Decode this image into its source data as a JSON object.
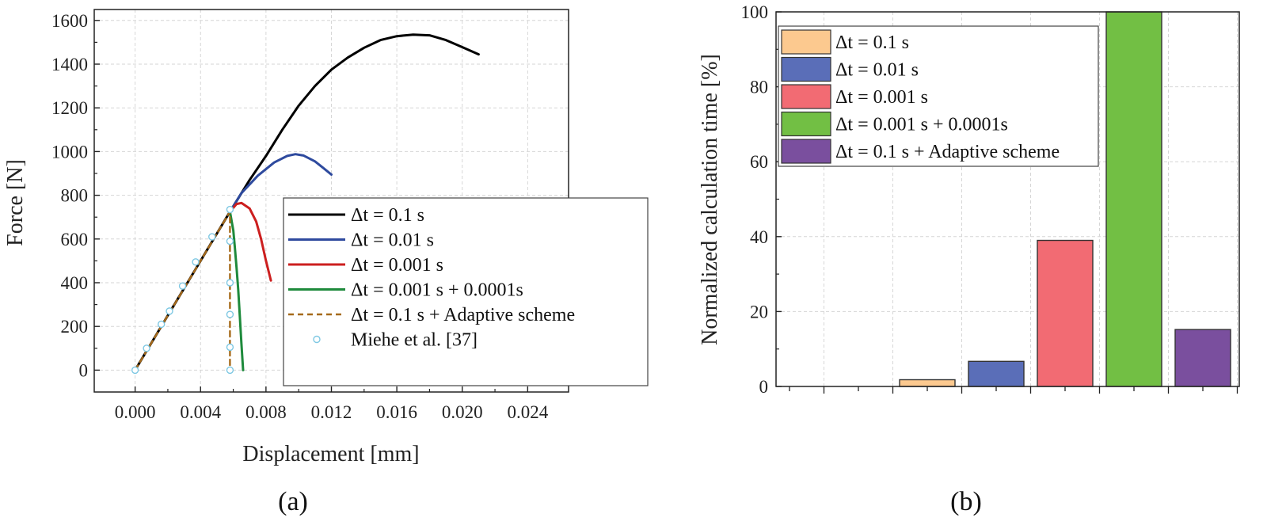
{
  "panels": [
    "(a)",
    "(b)"
  ],
  "chart_data": [
    {
      "type": "line",
      "panel": "a",
      "xlabel": "Displacement [mm]",
      "ylabel": "Force [N]",
      "xlim": [
        -0.0025,
        0.0265
      ],
      "ylim": [
        -100,
        1650
      ],
      "xticks": [
        "0.000",
        "0.004",
        "0.008",
        "0.012",
        "0.016",
        "0.020",
        "0.024"
      ],
      "yticks": [
        "0",
        "200",
        "400",
        "600",
        "800",
        "1000",
        "1200",
        "1400",
        "1600"
      ],
      "grid": true,
      "legend_position": "center-right",
      "series": [
        {
          "name": "Δt = 0.1 s",
          "color": "#000000",
          "style": "solid",
          "x": [
            0,
            0.001,
            0.002,
            0.003,
            0.004,
            0.005,
            0.0058,
            0.007,
            0.008,
            0.009,
            0.01,
            0.011,
            0.012,
            0.013,
            0.014,
            0.015,
            0.016,
            0.017,
            0.018,
            0.019,
            0.02,
            0.021
          ],
          "y": [
            0,
            125,
            250,
            375,
            500,
            625,
            725,
            870,
            980,
            1100,
            1210,
            1300,
            1375,
            1430,
            1475,
            1510,
            1528,
            1535,
            1532,
            1510,
            1478,
            1445
          ]
        },
        {
          "name": "Δt = 0.01 s",
          "color": "#2e4a9e",
          "style": "solid",
          "x": [
            0.0058,
            0.0065,
            0.0075,
            0.0085,
            0.0093,
            0.0098,
            0.0103,
            0.011,
            0.0115,
            0.012
          ],
          "y": [
            725,
            810,
            890,
            950,
            980,
            988,
            982,
            955,
            925,
            895
          ]
        },
        {
          "name": "Δt = 0.001 s",
          "color": "#cc1f1f",
          "style": "solid",
          "x": [
            0.0058,
            0.0062,
            0.0065,
            0.007,
            0.0074,
            0.0077,
            0.008,
            0.0083
          ],
          "y": [
            725,
            760,
            765,
            740,
            680,
            600,
            500,
            410
          ]
        },
        {
          "name": "Δt = 0.001 s + 0.0001s",
          "color": "#1e8a3c",
          "style": "solid",
          "x": [
            0.0058,
            0.006,
            0.0061,
            0.0062,
            0.0063,
            0.0064,
            0.0065,
            0.0066
          ],
          "y": [
            725,
            640,
            560,
            470,
            370,
            250,
            120,
            0
          ]
        },
        {
          "name": "Δt = 0.1 s + Adaptive scheme",
          "color": "#a66a1a",
          "style": "dashed",
          "x": [
            0,
            0.001,
            0.002,
            0.003,
            0.004,
            0.005,
            0.0058,
            0.0058,
            0.0058
          ],
          "y": [
            0,
            125,
            250,
            375,
            500,
            625,
            725,
            360,
            0
          ]
        },
        {
          "name": "Miehe et al. [37]",
          "color": "#7ec8e3",
          "style": "markers",
          "x": [
            0,
            0.0007,
            0.0016,
            0.0021,
            0.0029,
            0.0037,
            0.0047,
            0.0058,
            0.0058,
            0.0058,
            0.0058,
            0.0058,
            0.0058
          ],
          "y": [
            0,
            100,
            210,
            270,
            385,
            495,
            610,
            735,
            590,
            400,
            255,
            105,
            0
          ]
        }
      ]
    },
    {
      "type": "bar",
      "panel": "b",
      "ylabel": "Normalized calculation time [%]",
      "ylim": [
        0,
        100
      ],
      "yticks": [
        "0",
        "20",
        "40",
        "60",
        "80",
        "100"
      ],
      "grid": true,
      "legend_position": "top-left",
      "bars": [
        {
          "name": "Δt = 0.1 s",
          "value": 1.8,
          "color": "#fcc98f"
        },
        {
          "name": "Δt = 0.01 s",
          "value": 6.7,
          "color": "#5a6eb8"
        },
        {
          "name": "Δt = 0.001 s",
          "value": 39.0,
          "color": "#f26b73"
        },
        {
          "name": "Δt = 0.001 s + 0.0001s",
          "value": 100,
          "color": "#72bf44"
        },
        {
          "name": "Δt = 0.1 s + Adaptive scheme",
          "value": 15.2,
          "color": "#7a4f9e"
        }
      ]
    }
  ]
}
